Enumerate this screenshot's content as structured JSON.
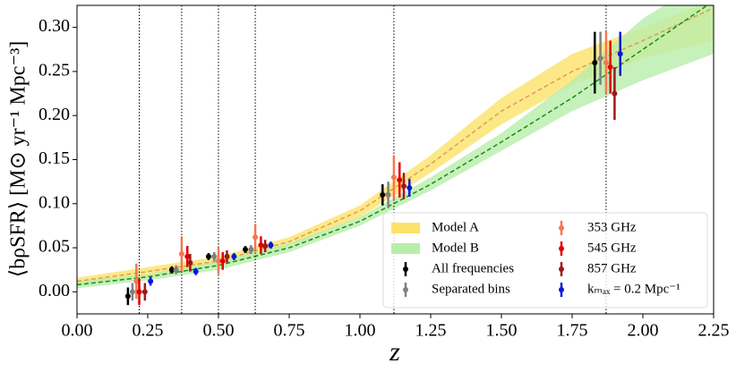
{
  "chart_data": {
    "type": "errorbar",
    "xlabel": "z",
    "ylabel": "⟨bρSFR⟩ [M⊙ yr⁻¹ Mpc⁻³]",
    "xlim": [
      0,
      2.25
    ],
    "ylim": [
      -0.025,
      0.325
    ],
    "xticks": [
      {
        "value": 0,
        "label": "0.00"
      },
      {
        "value": 0.25,
        "label": "0.25"
      },
      {
        "value": 0.5,
        "label": "0.50"
      },
      {
        "value": 0.75,
        "label": "0.75"
      },
      {
        "value": 1,
        "label": "1.00"
      },
      {
        "value": 1.25,
        "label": "1.25"
      },
      {
        "value": 1.5,
        "label": "1.50"
      },
      {
        "value": 1.75,
        "label": "1.75"
      },
      {
        "value": 2,
        "label": "2.00"
      },
      {
        "value": 2.25,
        "label": "2.25"
      }
    ],
    "yticks": [
      {
        "value": 0,
        "label": "0.00"
      },
      {
        "value": 0.05,
        "label": "0.05"
      },
      {
        "value": 0.1,
        "label": "0.10"
      },
      {
        "value": 0.15,
        "label": "0.15"
      },
      {
        "value": 0.2,
        "label": "0.20"
      },
      {
        "value": 0.25,
        "label": "0.25"
      },
      {
        "value": 0.3,
        "label": "0.30"
      }
    ],
    "vlines": [
      0.22,
      0.37,
      0.5,
      0.63,
      1.12,
      1.87
    ],
    "models": [
      {
        "name": "Model A",
        "color": "#fde26a",
        "line_color": "#d9a050",
        "x": [
          0,
          0.25,
          0.5,
          0.75,
          1,
          1.25,
          1.5,
          1.75,
          2,
          2.25
        ],
        "lower": [
          0.008,
          0.018,
          0.03,
          0.052,
          0.085,
          0.135,
          0.19,
          0.235,
          0.265,
          0.285
        ],
        "upper": [
          0.016,
          0.028,
          0.04,
          0.062,
          0.098,
          0.155,
          0.22,
          0.27,
          0.3,
          0.33
        ],
        "center": [
          0.012,
          0.023,
          0.035,
          0.057,
          0.092,
          0.145,
          0.205,
          0.25,
          0.285,
          0.322
        ]
      },
      {
        "name": "Model B",
        "color": "#b8eeaa",
        "line_color": "#1a8c1a",
        "x": [
          0,
          0.25,
          0.5,
          0.75,
          1,
          1.25,
          1.5,
          1.75,
          2,
          2.25
        ],
        "lower": [
          0.004,
          0.013,
          0.025,
          0.045,
          0.075,
          0.115,
          0.16,
          0.205,
          0.24,
          0.27
        ],
        "upper": [
          0.012,
          0.02,
          0.035,
          0.055,
          0.085,
          0.13,
          0.18,
          0.24,
          0.31,
          0.36
        ],
        "center": [
          0.008,
          0.017,
          0.03,
          0.05,
          0.08,
          0.122,
          0.17,
          0.22,
          0.275,
          0.33
        ]
      }
    ],
    "series": [
      {
        "name": "All frequencies",
        "color": "#000000",
        "x": [
          0.18,
          0.335,
          0.465,
          0.595,
          1.08,
          1.83
        ],
        "values": [
          -0.005,
          0.025,
          0.04,
          0.048,
          0.11,
          0.26
        ],
        "errors": [
          0.01,
          0.004,
          0.004,
          0.004,
          0.012,
          0.035
        ]
      },
      {
        "name": "Separated bins",
        "color": "#808080",
        "x": [
          0.196,
          0.35,
          0.485,
          0.615,
          1.1,
          1.85
        ],
        "values": [
          0,
          0.025,
          0.04,
          0.048,
          0.11,
          0.265
        ],
        "errors": [
          0.01,
          0.005,
          0.005,
          0.005,
          0.015,
          0.03
        ]
      },
      {
        "name": "353 GHz",
        "color": "#f4774f",
        "x": [
          0.21,
          0.37,
          0.5,
          0.63,
          1.12,
          1.87
        ],
        "values": [
          0.012,
          0.043,
          0.035,
          0.062,
          0.13,
          0.26
        ],
        "errors": [
          0.02,
          0.02,
          0.015,
          0.015,
          0.025,
          0.035
        ]
      },
      {
        "name": "545 GHz",
        "color": "#e00000",
        "x": [
          0.22,
          0.39,
          0.515,
          0.65,
          1.14,
          1.885
        ],
        "values": [
          0,
          0.04,
          0.035,
          0.053,
          0.127,
          0.255
        ],
        "errors": [
          0.015,
          0.012,
          0.01,
          0.01,
          0.02,
          0.03
        ]
      },
      {
        "name": "857 GHz",
        "color": "#a01818",
        "x": [
          0.24,
          0.4,
          0.53,
          0.665,
          1.155,
          1.9
        ],
        "values": [
          0,
          0.033,
          0.04,
          0.052,
          0.12,
          0.225
        ],
        "errors": [
          0.01,
          0.01,
          0.007,
          0.007,
          0.015,
          0.03
        ]
      },
      {
        "name": "kₘₐₓ = 0.2 Mpc⁻¹",
        "color": "#0a18d8",
        "x": [
          0.26,
          0.42,
          0.555,
          0.685,
          1.175,
          1.92
        ],
        "values": [
          0.012,
          0.023,
          0.04,
          0.053,
          0.118,
          0.27
        ],
        "errors": [
          0.005,
          0.004,
          0.004,
          0.004,
          0.01,
          0.025
        ]
      }
    ]
  }
}
